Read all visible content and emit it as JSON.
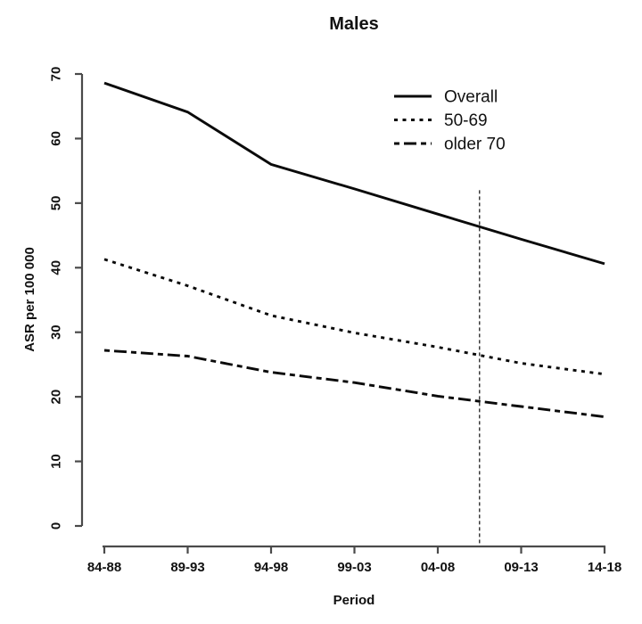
{
  "colors": {
    "background": "#ffffff",
    "line": "#0a0a0a",
    "axis": "#4a4a4a",
    "text": "#111111"
  },
  "chart_data": {
    "type": "line",
    "title": "Males",
    "xlabel": "Period",
    "ylabel": "ASR per 100 000",
    "categories": [
      "84-88",
      "89-93",
      "94-98",
      "99-03",
      "04-08",
      "09-13",
      "14-18"
    ],
    "y_ticks": [
      0,
      10,
      20,
      30,
      40,
      50,
      60,
      70
    ],
    "ylim": [
      0,
      70
    ],
    "grid": false,
    "legend_position": "top-right",
    "series": [
      {
        "name": "Overall",
        "line_style": "solid",
        "values": [
          68.6,
          64.1,
          56.0,
          52.2,
          48.3,
          44.4,
          40.6
        ]
      },
      {
        "name": "50-69",
        "line_style": "dotted",
        "values": [
          41.3,
          37.2,
          32.6,
          29.9,
          27.7,
          25.2,
          23.5
        ]
      },
      {
        "name": "older 70",
        "line_style": "dashed",
        "values": [
          27.2,
          26.3,
          23.8,
          22.2,
          20.1,
          18.5,
          16.9
        ]
      }
    ],
    "reference_line": {
      "orientation": "vertical",
      "x_position": 4.5,
      "between_categories": [
        "04-08",
        "09-13"
      ],
      "top_value": 52,
      "style": "dotted"
    }
  }
}
